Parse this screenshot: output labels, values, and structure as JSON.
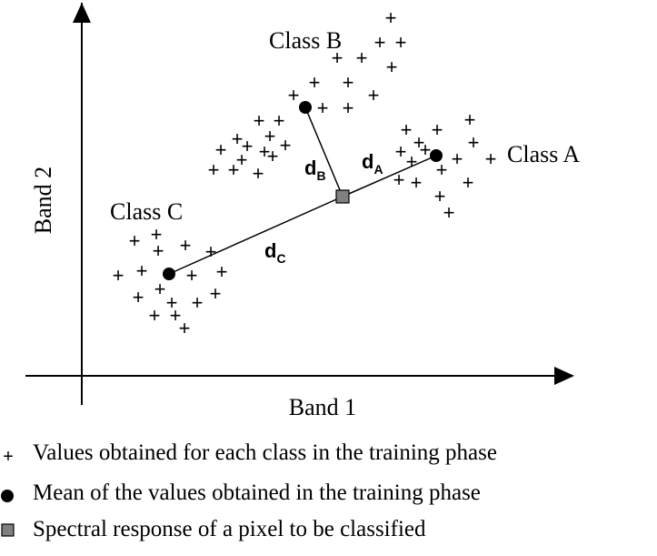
{
  "axes": {
    "x_label": "Band 1",
    "y_label": "Band 2"
  },
  "classes": [
    {
      "name": "Class A",
      "label": "Class A",
      "mean": "class-a-mean"
    },
    {
      "name": "Class B",
      "label": "Class B",
      "mean": "class-b-mean"
    },
    {
      "name": "Class C",
      "label": "Class C",
      "mean": "class-c-mean"
    }
  ],
  "distances": {
    "a": {
      "main": "d",
      "sub": "A"
    },
    "b": {
      "main": "d",
      "sub": "B"
    },
    "c": {
      "main": "d",
      "sub": "C"
    }
  },
  "legend": {
    "plus_symbol": "+",
    "training_values": "Values obtained for each class in the training phase",
    "mean_values": "Mean of the values obtained in the training phase",
    "pixel_response": "Spectral response of a pixel to be classified"
  },
  "colors": {
    "ink": "#000000",
    "pixel_fill": "#808080"
  }
}
